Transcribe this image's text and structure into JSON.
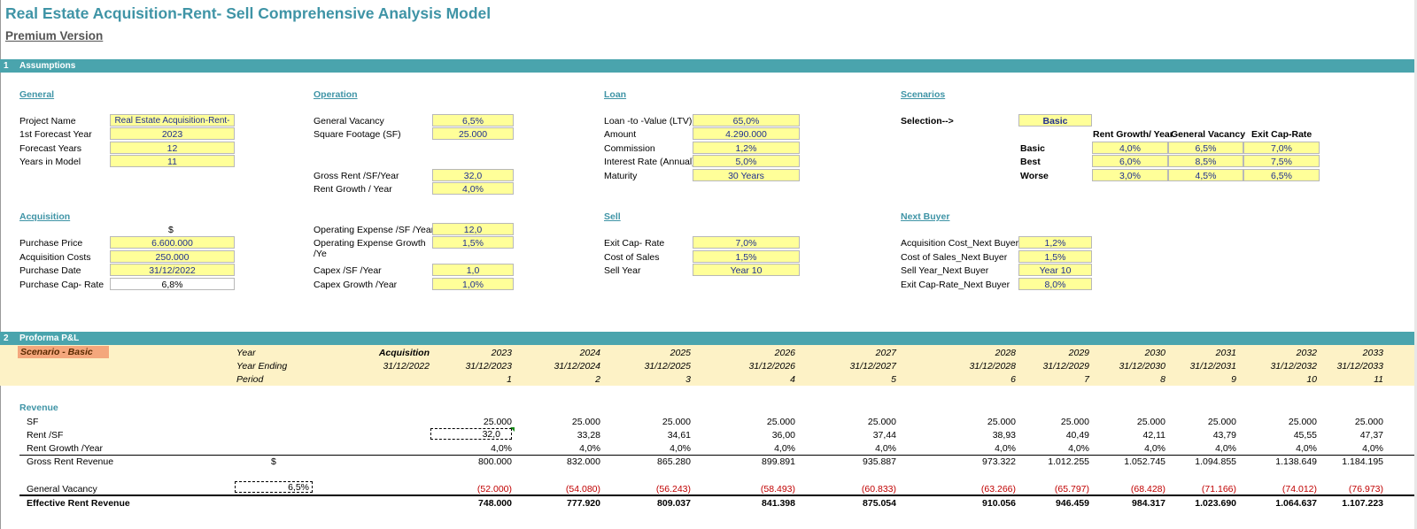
{
  "title": "Real Estate Acquisition-Rent- Sell Comprehensive Analysis Model",
  "subtitle": "Premium Version",
  "section1": {
    "num": "1",
    "label": "Assumptions"
  },
  "section2": {
    "num": "2",
    "label": "Proforma P&L"
  },
  "general": {
    "heading": "General",
    "rows": [
      {
        "label": "Project Name",
        "value": "Real Estate Acquisition-Rent- Sell"
      },
      {
        "label": "1st Forecast Year",
        "value": "2023"
      },
      {
        "label": "Forecast Years",
        "value": "12"
      },
      {
        "label": "Years in Model",
        "value": "11"
      }
    ]
  },
  "acquisition": {
    "heading": "Acquisition",
    "currency": "$",
    "rows": [
      {
        "label": "Purchase Price",
        "value": "6.600.000"
      },
      {
        "label": "Acquisition Costs",
        "value": "250.000"
      },
      {
        "label": "Purchase Date",
        "value": "31/12/2022"
      },
      {
        "label": "Purchase Cap- Rate",
        "value": "6,8%"
      }
    ]
  },
  "operation": {
    "heading": "Operation",
    "rows": [
      {
        "label": "General Vacancy",
        "value": "6,5%"
      },
      {
        "label": "Square Footage (SF)",
        "value": "25.000"
      },
      {
        "label": "Gross Rent /SF/Year",
        "value": "32,0"
      },
      {
        "label": "Rent Growth / Year",
        "value": "4,0%"
      },
      {
        "label": "Operating Expense /SF /Year",
        "value": "12,0"
      },
      {
        "label": "Operating Expense Growth  /Ye",
        "value": "1,5%"
      },
      {
        "label": "Capex /SF /Year",
        "value": "1,0"
      },
      {
        "label": "Capex Growth  /Year",
        "value": "1,0%"
      }
    ]
  },
  "loan": {
    "heading": "Loan",
    "rows": [
      {
        "label": "Loan -to -Value (LTV)",
        "value": "65,0%"
      },
      {
        "label": "Amount",
        "value": "4.290.000"
      },
      {
        "label": "Commission",
        "value": "1,2%"
      },
      {
        "label": "Interest Rate (Annual)",
        "value": "5,0%"
      },
      {
        "label": "Maturity",
        "value": "30 Years"
      }
    ]
  },
  "sell": {
    "heading": "Sell",
    "rows": [
      {
        "label": "Exit Cap- Rate",
        "value": "7,0%"
      },
      {
        "label": "Cost of Sales",
        "value": "1,5%"
      },
      {
        "label": "Sell Year",
        "value": "Year 10"
      }
    ]
  },
  "scenarios": {
    "heading": "Scenarios",
    "selection_label": "Selection-->",
    "selection_value": "Basic",
    "col_headers": [
      "Rent Growth/ Year",
      "General Vacancy",
      "Exit Cap-Rate"
    ],
    "rows": [
      {
        "name": "Basic",
        "values": [
          "4,0%",
          "6,5%",
          "7,0%"
        ]
      },
      {
        "name": "Best",
        "values": [
          "6,0%",
          "8,5%",
          "7,5%"
        ]
      },
      {
        "name": "Worse",
        "values": [
          "3,0%",
          "4,5%",
          "6,5%"
        ]
      }
    ]
  },
  "next_buyer": {
    "heading": "Next Buyer",
    "rows": [
      {
        "label": "Acquisition Cost_Next Buyer",
        "value": "1,2%"
      },
      {
        "label": "Cost of Sales_Next Buyer",
        "value": "1,5%"
      },
      {
        "label": "Sell Year_Next Buyer",
        "value": "Year 10"
      },
      {
        "label": "Exit Cap-Rate_Next Buyer",
        "value": "8,0%"
      }
    ]
  },
  "proforma": {
    "scenario_label": "Scenario - Basic",
    "row_labels": [
      "Year",
      "Year Ending",
      "Period"
    ],
    "acq": {
      "label": "Acquisition",
      "date": "31/12/2022"
    },
    "years": [
      "2023",
      "2024",
      "2025",
      "2026",
      "2027",
      "2028",
      "2029",
      "2030",
      "2031",
      "2032",
      "2033"
    ],
    "ending": [
      "31/12/2023",
      "31/12/2024",
      "31/12/2025",
      "31/12/2026",
      "31/12/2027",
      "31/12/2028",
      "31/12/2029",
      "31/12/2030",
      "31/12/2031",
      "31/12/2032",
      "31/12/2033"
    ],
    "periods": [
      "1",
      "2",
      "3",
      "4",
      "5",
      "6",
      "7",
      "8",
      "9",
      "10",
      "11"
    ],
    "revenue_heading": "Revenue",
    "currency": "$",
    "lines": {
      "sf": {
        "label": "SF",
        "values": [
          "25.000",
          "25.000",
          "25.000",
          "25.000",
          "25.000",
          "25.000",
          "25.000",
          "25.000",
          "25.000",
          "25.000",
          "25.000"
        ]
      },
      "rent_sf": {
        "label": "Rent /SF",
        "values": [
          "32,0",
          "33,28",
          "34,61",
          "36,00",
          "37,44",
          "38,93",
          "40,49",
          "42,11",
          "43,79",
          "45,55",
          "47,37"
        ]
      },
      "rent_growth": {
        "label": "Rent Growth /Year",
        "values": [
          "4,0%",
          "4,0%",
          "4,0%",
          "4,0%",
          "4,0%",
          "4,0%",
          "4,0%",
          "4,0%",
          "4,0%",
          "4,0%",
          "4,0%"
        ]
      },
      "gross": {
        "label": "Gross Rent Revenue",
        "values": [
          "800.000",
          "832.000",
          "865.280",
          "899.891",
          "935.887",
          "973.322",
          "1.012.255",
          "1.052.745",
          "1.094.855",
          "1.138.649",
          "1.184.195"
        ]
      },
      "vacancy": {
        "label": "General Vacancy",
        "input": "6,5%",
        "values": [
          "(52.000)",
          "(54.080)",
          "(56.243)",
          "(58.493)",
          "(60.833)",
          "(63.266)",
          "(65.797)",
          "(68.428)",
          "(71.166)",
          "(74.012)",
          "(76.973)"
        ]
      },
      "effective": {
        "label": "Effective Rent Revenue",
        "values": [
          "748.000",
          "777.920",
          "809.037",
          "841.398",
          "875.054",
          "910.056",
          "946.459",
          "984.317",
          "1.023.690",
          "1.064.637",
          "1.107.223"
        ]
      }
    }
  }
}
